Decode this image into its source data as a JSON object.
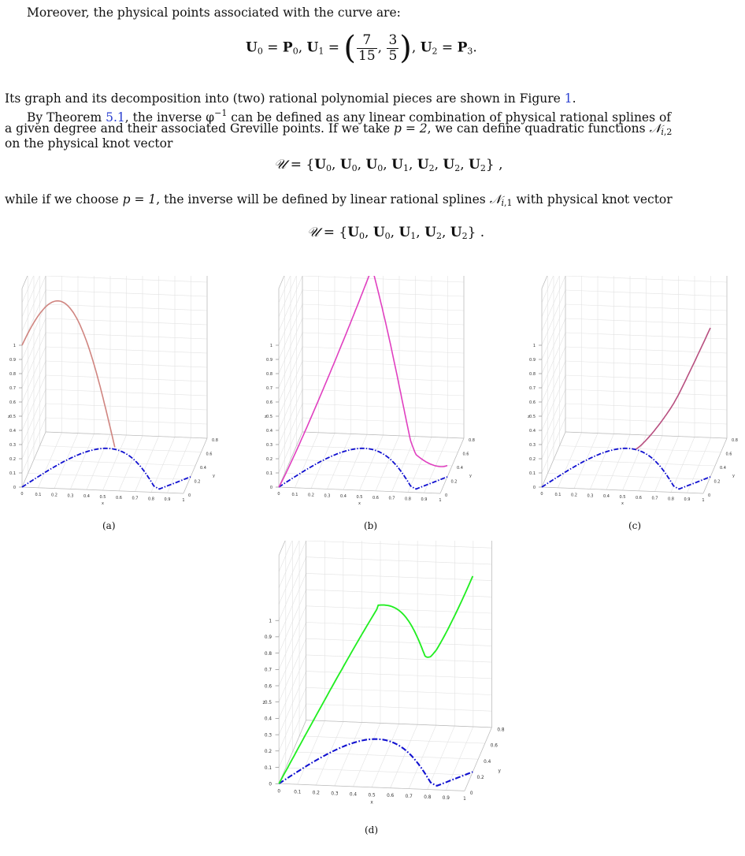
{
  "paragraph1": "Moreover, the physical points associated with the curve are:",
  "paragraph2": "Its graph and its decomposition into (two) rational polynomial pieces are shown in Figure",
  "paragraph2_ref": "1",
  "paragraph3_a": "By Theorem",
  "paragraph3_ref": "5.1",
  "paragraph3_b": ", the inverse φ",
  "paragraph3_sup": "−1",
  "paragraph3_c": " can be defined as any linear combination of physical rational splines of",
  "paragraph3_line2_a": "a given degree and their associated Greville points. If we take ",
  "paragraph3_line2_b": "p = 2",
  "paragraph3_line2_c": ", we can define quadratic functions ",
  "paragraph3_line3": "on the physical knot vector",
  "paragraph4_a": "while if we choose ",
  "paragraph4_b": "p = 1",
  "paragraph4_c": ", the inverse will be defined by linear rational splines ",
  "paragraph4_d": " with physical knot vector",
  "captions": [
    "(a)",
    "(b)",
    "(c)",
    "(d)"
  ],
  "axis": {
    "x_label": "x",
    "y_label": "y",
    "z_label": "z",
    "x_ticks": [
      "0",
      "0.1",
      "0.2",
      "0.3",
      "0.4",
      "0.5",
      "0.6",
      "0.7",
      "0.8",
      "0.9",
      "1"
    ],
    "y_ticks": [
      "0",
      "0.2",
      "0.4",
      "0.6",
      "0.8"
    ],
    "z_ticks": [
      "0",
      "0.1",
      "0.2",
      "0.3",
      "0.4",
      "0.5",
      "0.6",
      "0.7",
      "0.8",
      "0.9",
      "1"
    ]
  },
  "colors": {
    "a_curve": "#d08580",
    "b_curve": "#e040c0",
    "c_curve": "#b85080",
    "d_curve": "#22ee22",
    "base_curve": "#1010d0"
  }
}
